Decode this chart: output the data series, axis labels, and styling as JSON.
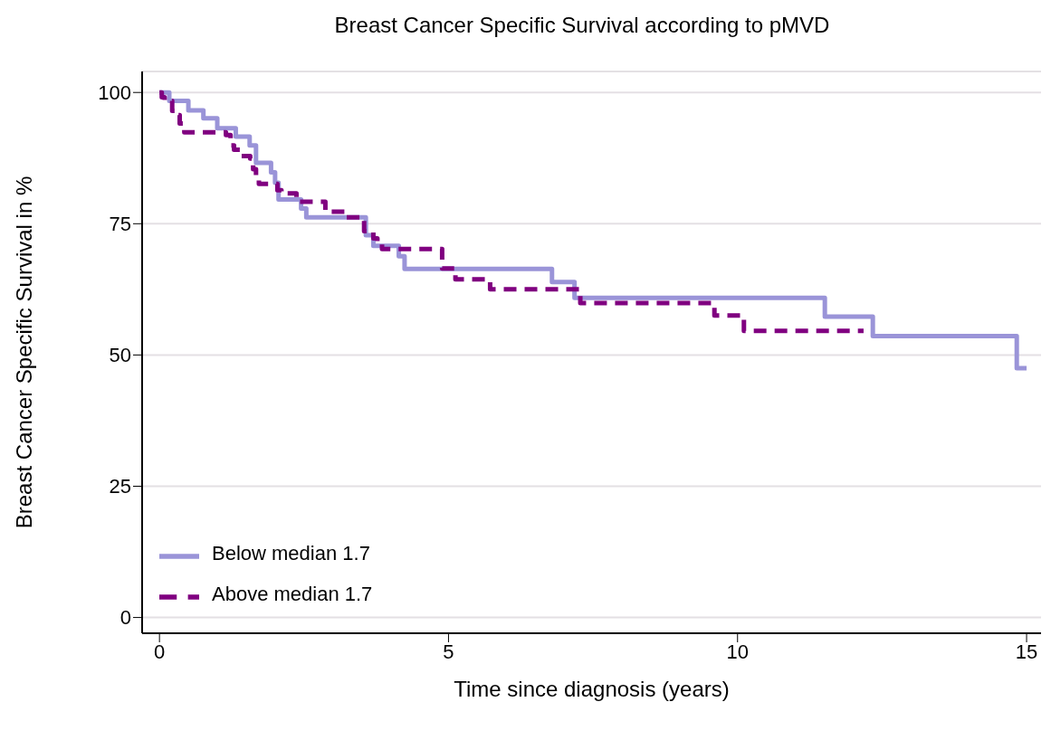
{
  "chart_data": {
    "type": "step",
    "title": "Breast Cancer Specific Survival according to pMVD",
    "xlabel": "Time since diagnosis (years)",
    "ylabel": "Breast Cancer Specific Survival in %",
    "xlim": [
      -0.3,
      15.25
    ],
    "xticks": [
      0,
      5,
      10,
      15
    ],
    "ylim": [
      -3,
      104
    ],
    "yticks": [
      0,
      25,
      50,
      75,
      100
    ],
    "grid": "y",
    "legend": "bottom left",
    "marker": "none",
    "series": [
      {
        "name": "Below median 1.7",
        "color": "#9a94d8",
        "line_style": "solid",
        "x": [
          0,
          0.17,
          0.5,
          0.76,
          1.0,
          1.32,
          1.56,
          1.67,
          1.93,
          2.0,
          2.06,
          2.45,
          2.54,
          3.57,
          3.7,
          4.14,
          4.24,
          6.79,
          7.18,
          11.51,
          12.34,
          14.83,
          15.0
        ],
        "values": [
          100,
          98.4,
          96.6,
          95.1,
          93.2,
          91.6,
          89.9,
          86.6,
          84.8,
          82.8,
          79.6,
          77.9,
          76.2,
          72.8,
          70.8,
          68.8,
          66.4,
          63.9,
          60.9,
          57.3,
          53.6,
          47.5,
          47.5
        ]
      },
      {
        "name": "Above median 1.7",
        "color": "#800080",
        "line_style": "dashed",
        "x": [
          0,
          0.04,
          0.09,
          0.22,
          0.27,
          0.35,
          0.43,
          1.15,
          1.23,
          1.29,
          1.39,
          1.57,
          1.62,
          1.67,
          1.72,
          2.04,
          2.11,
          2.37,
          2.87,
          3.2,
          3.54,
          3.7,
          3.77,
          3.85,
          4.89,
          5.12,
          5.72,
          7.28,
          9.6,
          10.11,
          12.18
        ],
        "values": [
          100,
          99.1,
          98.4,
          96.5,
          95.7,
          94.1,
          92.4,
          91.9,
          89.9,
          89.1,
          87.9,
          87.4,
          85.4,
          84.2,
          82.6,
          81.4,
          80.8,
          79.2,
          77.3,
          76.2,
          73.6,
          72.2,
          71.5,
          70.2,
          66.5,
          64.4,
          62.5,
          59.9,
          57.5,
          54.6,
          54.6
        ]
      }
    ]
  }
}
